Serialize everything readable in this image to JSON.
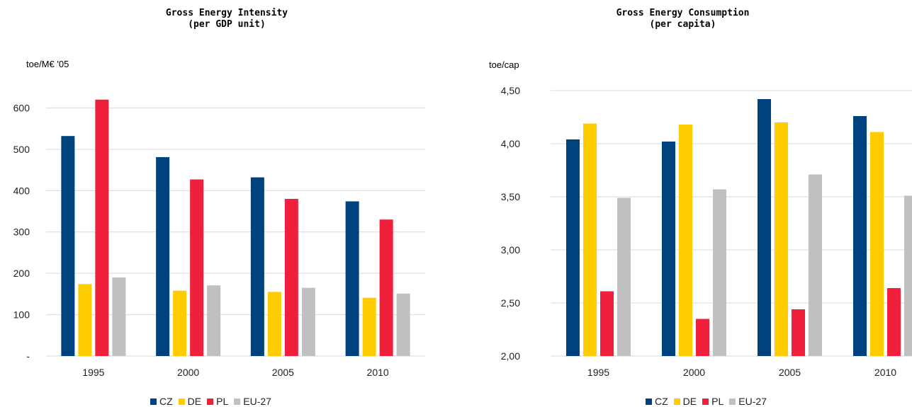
{
  "colors": {
    "CZ": "#00427E",
    "DE": "#FFCC00",
    "PL": "#F0203D",
    "EU-27": "#C0C0C0",
    "grid": "#D9D9D9"
  },
  "chart_data": [
    {
      "type": "bar",
      "title_line1": "Gross Energy Intensity",
      "title_line2": "(per GDP unit)",
      "ylabel": "toe/M€ '05",
      "xlabel": "",
      "categories": [
        "1995",
        "2000",
        "2005",
        "2010"
      ],
      "ylim": [
        0,
        700
      ],
      "yticks": [
        0,
        100,
        200,
        300,
        400,
        500,
        600
      ],
      "ytick_labels": [
        "-",
        "100",
        "200",
        "300",
        "400",
        "500",
        "600"
      ],
      "grid": true,
      "legend_position": "bottom",
      "series": [
        {
          "name": "CZ",
          "values": [
            532,
            481,
            432,
            374
          ]
        },
        {
          "name": "DE",
          "values": [
            174,
            158,
            155,
            141
          ]
        },
        {
          "name": "PL",
          "values": [
            620,
            427,
            380,
            330
          ]
        },
        {
          "name": "EU-27",
          "values": [
            190,
            171,
            165,
            151
          ]
        }
      ]
    },
    {
      "type": "bar",
      "title_line1": "Gross Energy Consumption",
      "title_line2": "(per capita)",
      "ylabel": "toe/cap",
      "xlabel": "",
      "categories": [
        "1995",
        "2000",
        "2005",
        "2010"
      ],
      "ylim": [
        2.0,
        4.5
      ],
      "yticks": [
        2.0,
        2.5,
        3.0,
        3.5,
        4.0,
        4.5
      ],
      "ytick_labels": [
        "2,00",
        "2,50",
        "3,00",
        "3,50",
        "4,00",
        "4,50"
      ],
      "grid": true,
      "legend_position": "bottom",
      "series": [
        {
          "name": "CZ",
          "values": [
            4.04,
            4.02,
            4.42,
            4.26
          ]
        },
        {
          "name": "DE",
          "values": [
            4.19,
            4.18,
            4.2,
            4.11
          ]
        },
        {
          "name": "PL",
          "values": [
            2.61,
            2.35,
            2.44,
            2.64
          ]
        },
        {
          "name": "EU-27",
          "values": [
            3.49,
            3.57,
            3.71,
            3.51
          ]
        }
      ]
    }
  ]
}
